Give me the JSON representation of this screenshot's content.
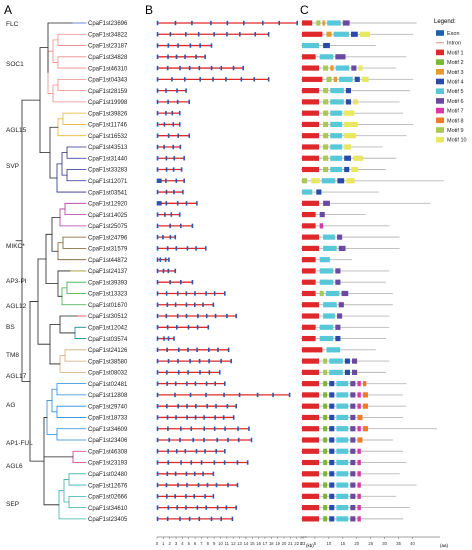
{
  "panel_labels": [
    "A",
    "B",
    "C"
  ],
  "genes": [
    "CpaF1st23696",
    "CpaF1st34822",
    "CpaF1st23187",
    "CpaF1st34828",
    "CpaF1st46310",
    "CpaF1st04343",
    "CpaF1st28159",
    "CpaF1st19998",
    "CpaF1st39826",
    "CpaF1st11746",
    "CpaF1st16532",
    "CpaF1st43513",
    "CpaF1st31440",
    "CpaF1st33283",
    "CpaF1st12071",
    "CpaF1st03541",
    "CpaF1st12920",
    "CpaF1st14025",
    "CpaF1st25075",
    "CpaF1st24796",
    "CpaF1st31579",
    "CpaF1st44872",
    "CpaF1st24137",
    "CpaF1st39393",
    "CpaF1st13323",
    "CpaF1st01670",
    "CpaF1st30512",
    "CpaF1st12042",
    "CpaF1st03574",
    "CpaF1st24126",
    "CpaF1st38580",
    "CpaF1st08032",
    "CpaF1st02481",
    "CpaF1st12808",
    "CpaF1st29740",
    "CpaF1st18733",
    "CpaF1st34609",
    "CpaF1st23406",
    "CpaF1st46308",
    "CpaF1st23193",
    "CpaF1st02480",
    "CpaF1st12676",
    "CpaF1st02666",
    "CpaF1st34610",
    "CpaF1st23405"
  ],
  "subfamilies": [
    {
      "label": "FLC",
      "color": "#3a62c8"
    },
    {
      "label": "SOC1",
      "color": "#ec8a8a"
    },
    {
      "label": "AGL15",
      "color": "#e8b531"
    },
    {
      "label": "SVP",
      "color": "#2b2f86"
    },
    {
      "label": "MIKC*",
      "color": "#b03aa0"
    },
    {
      "label": "AP3-PI",
      "color": "#7a5a2c"
    },
    {
      "label": "AGL12",
      "color": "#9e9a2a"
    },
    {
      "label": "BS",
      "color": "#3aaa48"
    },
    {
      "label": "TM8",
      "color": "#e0323c"
    },
    {
      "label": "AGL17",
      "color": "#1e8c8c"
    },
    {
      "label": "AG",
      "color": "#d2aa78"
    },
    {
      "label": "AP1-FUL",
      "color": "#2a8ad8"
    },
    {
      "label": "AGL6",
      "color": "#c23a88"
    },
    {
      "label": "SEP",
      "color": "#38b0a8"
    }
  ],
  "gene_structure_axis": {
    "ticks": [
      "0",
      "1",
      "2",
      "3",
      "4",
      "5",
      "6",
      "7",
      "8",
      "9",
      "10",
      "11",
      "12",
      "13",
      "14",
      "15",
      "16",
      "17",
      "18",
      "19",
      "20",
      "21",
      "22",
      "23"
    ],
    "unit": "(kb)"
  },
  "motif_axis": {
    "ticks": [
      "0",
      "5",
      "10",
      "15",
      "20",
      "25",
      "30",
      "35",
      "40"
    ],
    "unit": "(aa)"
  },
  "legend": {
    "title": "Legend:",
    "items": [
      {
        "label": "Exon",
        "color": "#1f5fb0",
        "kind": "box"
      },
      {
        "label": "Intron",
        "color": "#f0a8a8",
        "kind": "line"
      },
      {
        "label": "Motif 1",
        "color": "#e0282a",
        "kind": "box"
      },
      {
        "label": "Motif 2",
        "color": "#7ab83a",
        "kind": "box"
      },
      {
        "label": "Motif 3",
        "color": "#e89a2a",
        "kind": "box"
      },
      {
        "label": "Motif 4",
        "color": "#2a4aa8",
        "kind": "box"
      },
      {
        "label": "Motif 5",
        "color": "#58c8d8",
        "kind": "box"
      },
      {
        "label": "Motif 6",
        "color": "#6a4aa0",
        "kind": "box"
      },
      {
        "label": "Motif 7",
        "color": "#d838a8",
        "kind": "box"
      },
      {
        "label": "Motif 8",
        "color": "#f07a2a",
        "kind": "box"
      },
      {
        "label": "Motif 9",
        "color": "#a8c858",
        "kind": "box"
      },
      {
        "label": "Motif 10",
        "color": "#e8e860",
        "kind": "box"
      }
    ]
  }
}
